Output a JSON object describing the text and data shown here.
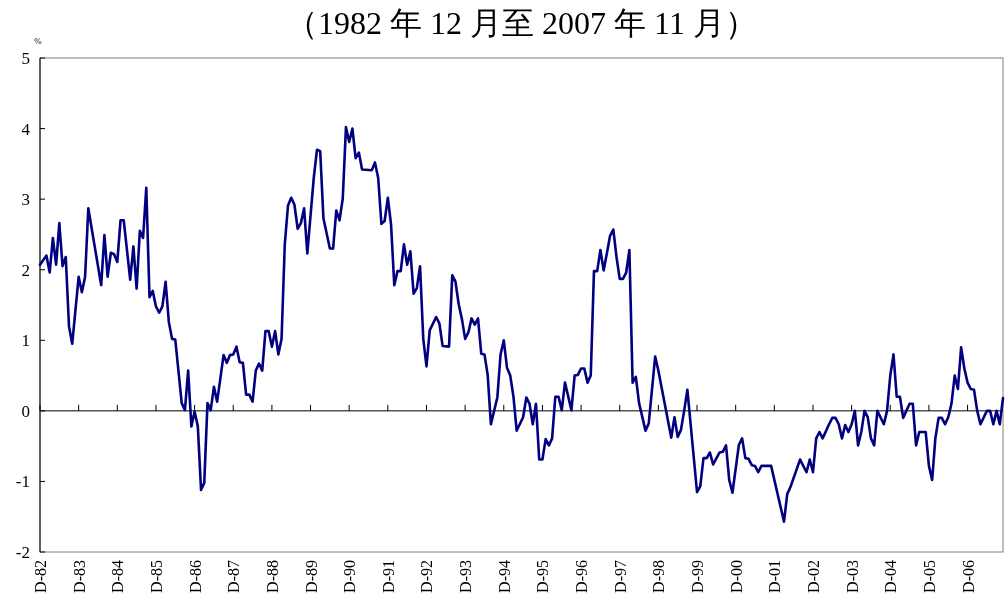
{
  "chart_data": {
    "type": "line",
    "title": "（1982 年 12 月至 2007 年 11 月）",
    "ylabel": "%",
    "x": [
      "1982-12",
      "1983-02",
      "1983-03",
      "1983-04",
      "1983-05",
      "1983-06",
      "1983-07",
      "1983-08",
      "1983-09",
      "1983-10",
      "1983-12",
      "1984-01",
      "1984-02",
      "1984-03",
      "1984-07",
      "1984-08",
      "1984-09",
      "1984-10",
      "1984-11",
      "1984-12",
      "1985-01",
      "1985-02",
      "1985-04",
      "1985-05",
      "1985-06",
      "1985-07",
      "1985-08",
      "1985-09",
      "1985-10",
      "1985-11",
      "1985-12",
      "1986-01",
      "1986-02",
      "1986-03",
      "1986-04",
      "1986-05",
      "1986-06",
      "1986-08",
      "1986-09",
      "1986-10",
      "1986-11",
      "1986-12",
      "1987-01",
      "1987-02",
      "1987-03",
      "1987-04",
      "1987-05",
      "1987-06",
      "1987-07",
      "1987-09",
      "1987-10",
      "1987-11",
      "1987-12",
      "1988-01",
      "1988-02",
      "1988-03",
      "1988-04",
      "1988-05",
      "1988-06",
      "1988-07",
      "1988-08",
      "1988-09",
      "1988-10",
      "1988-11",
      "1988-12",
      "1989-01",
      "1989-02",
      "1989-03",
      "1989-04",
      "1989-05",
      "1989-06",
      "1989-07",
      "1989-08",
      "1989-09",
      "1989-10",
      "1989-11",
      "1990-01",
      "1990-02",
      "1990-03",
      "1990-04",
      "1990-06",
      "1990-07",
      "1990-08",
      "1990-09",
      "1990-10",
      "1990-11",
      "1990-12",
      "1991-01",
      "1991-02",
      "1991-03",
      "1991-04",
      "1991-07",
      "1991-08",
      "1991-09",
      "1991-10",
      "1991-11",
      "1991-12",
      "1992-01",
      "1992-02",
      "1992-03",
      "1992-04",
      "1992-05",
      "1992-06",
      "1992-07",
      "1992-08",
      "1992-09",
      "1992-10",
      "1992-11",
      "1992-12",
      "1993-01",
      "1993-03",
      "1993-04",
      "1993-05",
      "1993-07",
      "1993-08",
      "1993-09",
      "1993-10",
      "1993-11",
      "1993-12",
      "1994-01",
      "1994-02",
      "1994-03",
      "1994-04",
      "1994-05",
      "1994-06",
      "1994-07",
      "1994-08",
      "1994-10",
      "1994-11",
      "1994-12",
      "1995-01",
      "1995-02",
      "1995-03",
      "1995-04",
      "1995-06",
      "1995-07",
      "1995-08",
      "1995-09",
      "1995-10",
      "1995-11",
      "1995-12",
      "1996-01",
      "1996-02",
      "1996-03",
      "1996-04",
      "1996-05",
      "1996-06",
      "1996-07",
      "1996-09",
      "1996-10",
      "1996-11",
      "1996-12",
      "1997-01",
      "1997-02",
      "1997-03",
      "1997-04",
      "1997-05",
      "1997-06",
      "1997-07",
      "1997-08",
      "1997-09",
      "1997-10",
      "1997-11",
      "1997-12",
      "1998-01",
      "1998-02",
      "1998-03",
      "1998-04",
      "1998-05",
      "1998-06",
      "1998-08",
      "1998-09",
      "1998-11",
      "1998-12",
      "1999-04",
      "1999-05",
      "1999-06",
      "1999-07",
      "1999-08",
      "1999-09",
      "1999-12",
      "2000-01",
      "2000-02",
      "2000-03",
      "2000-04",
      "2000-05",
      "2000-07",
      "2000-08",
      "2000-09",
      "2000-10",
      "2000-11",
      "2001-01",
      "2001-02",
      "2001-03",
      "2001-04",
      "2001-05",
      "2001-06",
      "2001-07",
      "2001-08",
      "2001-11",
      "2002-03",
      "2002-04",
      "2002-05",
      "2002-08",
      "2002-10",
      "2002-11",
      "2002-12",
      "2003-01",
      "2003-02",
      "2003-03",
      "2003-05",
      "2003-06",
      "2003-07",
      "2003-08",
      "2003-09",
      "2003-10",
      "2003-11",
      "2003-12",
      "2004-01",
      "2004-02",
      "2004-03",
      "2004-04",
      "2004-05",
      "2004-06",
      "2004-07",
      "2004-08",
      "2004-10",
      "2004-11",
      "2004-12",
      "2005-01",
      "2005-02",
      "2005-03",
      "2005-04",
      "2005-06",
      "2005-07",
      "2005-08",
      "2005-09",
      "2005-11",
      "2005-12",
      "2006-01",
      "2006-02",
      "2006-03",
      "2006-04",
      "2006-05",
      "2006-06",
      "2006-07",
      "2006-08",
      "2006-09",
      "2006-10",
      "2006-11",
      "2006-12",
      "2007-01",
      "2007-02",
      "2007-03",
      "2007-04",
      "2007-06",
      "2007-07",
      "2007-08",
      "2007-09",
      "2007-10",
      "2007-11"
    ],
    "series": [
      {
        "color": "#000080",
        "values": [
          2.07,
          2.2,
          1.96,
          2.45,
          2.07,
          2.66,
          2.05,
          2.18,
          1.2,
          0.95,
          1.9,
          1.68,
          1.9,
          2.87,
          1.78,
          2.49,
          1.9,
          2.24,
          2.22,
          2.11,
          2.7,
          2.7,
          1.86,
          2.33,
          1.73,
          2.55,
          2.45,
          3.16,
          1.61,
          1.7,
          1.48,
          1.39,
          1.48,
          1.83,
          1.26,
          1.02,
          1.01,
          0.11,
          0.01,
          0.57,
          -0.22,
          -0.01,
          -0.22,
          -1.12,
          -1.02,
          0.11,
          0.01,
          0.34,
          0.13,
          0.79,
          0.68,
          0.79,
          0.8,
          0.91,
          0.69,
          0.68,
          0.23,
          0.23,
          0.13,
          0.57,
          0.67,
          0.57,
          1.13,
          1.13,
          0.91,
          1.13,
          0.8,
          1.02,
          2.36,
          2.91,
          3.02,
          2.92,
          2.58,
          2.66,
          2.87,
          2.23,
          3.3,
          3.7,
          3.68,
          2.73,
          2.3,
          2.3,
          2.84,
          2.7,
          3.01,
          4.02,
          3.81,
          4.0,
          3.58,
          3.66,
          3.42,
          3.41,
          3.52,
          3.3,
          2.65,
          2.69,
          3.02,
          2.64,
          1.78,
          1.98,
          1.98,
          2.36,
          2.07,
          2.26,
          1.66,
          1.74,
          2.05,
          1.02,
          0.63,
          1.14,
          1.33,
          1.24,
          0.92,
          0.91,
          1.92,
          1.83,
          1.51,
          1.3,
          1.02,
          1.11,
          1.31,
          1.22,
          1.31,
          0.81,
          0.8,
          0.51,
          -0.19,
          0.19,
          0.8,
          1.0,
          0.61,
          0.5,
          0.2,
          -0.28,
          -0.09,
          0.19,
          0.1,
          -0.19,
          0.1,
          -0.69,
          -0.69,
          -0.4,
          -0.49,
          -0.39,
          0.2,
          0.2,
          0.01,
          0.4,
          0.01,
          0.5,
          0.51,
          0.6,
          0.6,
          0.4,
          0.5,
          1.98,
          1.98,
          2.28,
          1.99,
          2.23,
          2.48,
          2.57,
          2.18,
          1.87,
          1.87,
          1.96,
          2.28,
          0.4,
          0.48,
          0.11,
          -0.28,
          -0.18,
          0.77,
          0.57,
          -0.38,
          -0.09,
          -0.37,
          -0.27,
          0.0,
          0.3,
          -1.15,
          -1.07,
          -0.67,
          -0.67,
          -0.59,
          -0.76,
          -0.59,
          -0.58,
          -0.49,
          -0.98,
          -1.16,
          -0.48,
          -0.39,
          -0.67,
          -0.68,
          -0.77,
          -0.78,
          -0.87,
          -0.78,
          -0.78,
          -1.57,
          -1.18,
          -1.08,
          -0.69,
          -0.87,
          -0.69,
          -0.87,
          -0.39,
          -0.3,
          -0.39,
          -0.19,
          -0.1,
          -0.1,
          -0.19,
          -0.39,
          -0.2,
          -0.3,
          -0.19,
          0.0,
          -0.49,
          -0.3,
          0.0,
          -0.09,
          -0.39,
          -0.49,
          0.0,
          -0.19,
          0.0,
          0.5,
          0.8,
          0.2,
          0.2,
          -0.1,
          0.1,
          0.1,
          -0.49,
          -0.3,
          -0.3,
          -0.78,
          -0.98,
          -0.39,
          -0.1,
          -0.1,
          -0.19,
          -0.09,
          0.1,
          0.5,
          0.31,
          0.9,
          0.6,
          0.4,
          0.31,
          0.3,
          0.0,
          -0.19,
          0.0,
          0.0,
          -0.19,
          0.0,
          -0.19,
          0.18
        ]
      }
    ],
    "xlim": [
      "1982-12",
      "2007-11"
    ],
    "xticks": [
      {
        "value": "1982-12",
        "label": "D-82"
      },
      {
        "value": "1983-12",
        "label": "D-83"
      },
      {
        "value": "1984-12",
        "label": "D-84"
      },
      {
        "value": "1985-12",
        "label": "D-85"
      },
      {
        "value": "1986-12",
        "label": "D-86"
      },
      {
        "value": "1987-12",
        "label": "D-87"
      },
      {
        "value": "1988-12",
        "label": "D-88"
      },
      {
        "value": "1989-12",
        "label": "D-89"
      },
      {
        "value": "1990-12",
        "label": "D-90"
      },
      {
        "value": "1991-12",
        "label": "D-91"
      },
      {
        "value": "1992-12",
        "label": "D-92"
      },
      {
        "value": "1993-12",
        "label": "D-93"
      },
      {
        "value": "1994-12",
        "label": "D-94"
      },
      {
        "value": "1995-12",
        "label": "D-95"
      },
      {
        "value": "1996-12",
        "label": "D-96"
      },
      {
        "value": "1997-12",
        "label": "D-97"
      },
      {
        "value": "1998-12",
        "label": "D-98"
      },
      {
        "value": "1999-12",
        "label": "D-99"
      },
      {
        "value": "2000-12",
        "label": "D-00"
      },
      {
        "value": "2001-12",
        "label": "D-01"
      },
      {
        "value": "2002-12",
        "label": "D-02"
      },
      {
        "value": "2003-12",
        "label": "D-03"
      },
      {
        "value": "2004-12",
        "label": "D-04"
      },
      {
        "value": "2005-12",
        "label": "D-05"
      },
      {
        "value": "2006-12",
        "label": "D-06"
      }
    ],
    "ylim": [
      -2,
      5
    ],
    "yticks": [
      -2,
      -1,
      0,
      1,
      2,
      3,
      4,
      5
    ],
    "marker": "none",
    "line_style": "solid"
  }
}
